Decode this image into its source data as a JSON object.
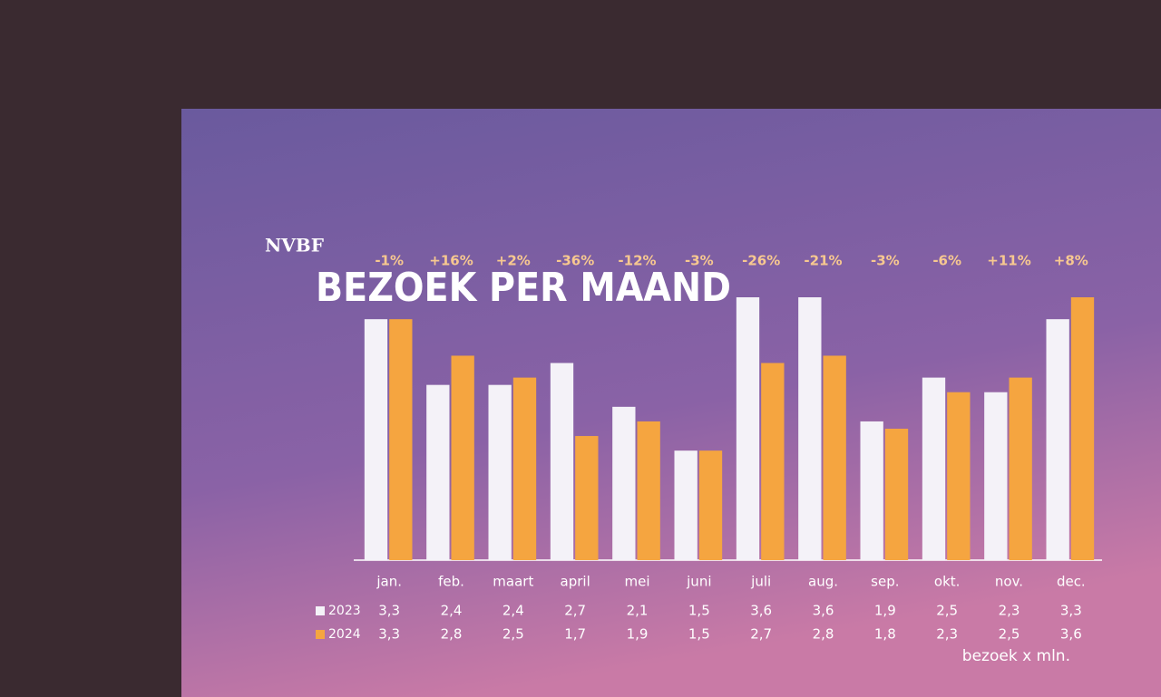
{
  "chart_data": {
    "type": "bar",
    "logo": "NVBF",
    "title": "BEZOEK PER MAAND",
    "categories": [
      "jan.",
      "feb.",
      "maart",
      "april",
      "mei",
      "juni",
      "juli",
      "aug.",
      "sep.",
      "okt.",
      "nov.",
      "dec."
    ],
    "series": [
      {
        "name": "2023",
        "color": "#f4f2f8",
        "values": [
          3.3,
          2.4,
          2.4,
          2.7,
          2.1,
          1.5,
          3.6,
          3.6,
          1.9,
          2.5,
          2.3,
          3.3
        ],
        "value_labels": [
          "3,3",
          "2,4",
          "2,4",
          "2,7",
          "2,1",
          "1,5",
          "3,6",
          "3,6",
          "1,9",
          "2,5",
          "2,3",
          "3,3"
        ]
      },
      {
        "name": "2024",
        "color": "#f5a540",
        "values": [
          3.3,
          2.8,
          2.5,
          1.7,
          1.9,
          1.5,
          2.7,
          2.8,
          1.8,
          2.3,
          2.5,
          3.6
        ],
        "value_labels": [
          "3,3",
          "2,8",
          "2,5",
          "1,7",
          "1,9",
          "1,5",
          "2,7",
          "2,8",
          "1,8",
          "2,3",
          "2,5",
          "3,6"
        ]
      }
    ],
    "annotations": [
      "-1%",
      "+16%",
      "+2%",
      "-36%",
      "-12%",
      "-3%",
      "-26%",
      "-21%",
      "-3%",
      "-6%",
      "+11%",
      "+8%"
    ],
    "note": "bezoek x mln."
  }
}
